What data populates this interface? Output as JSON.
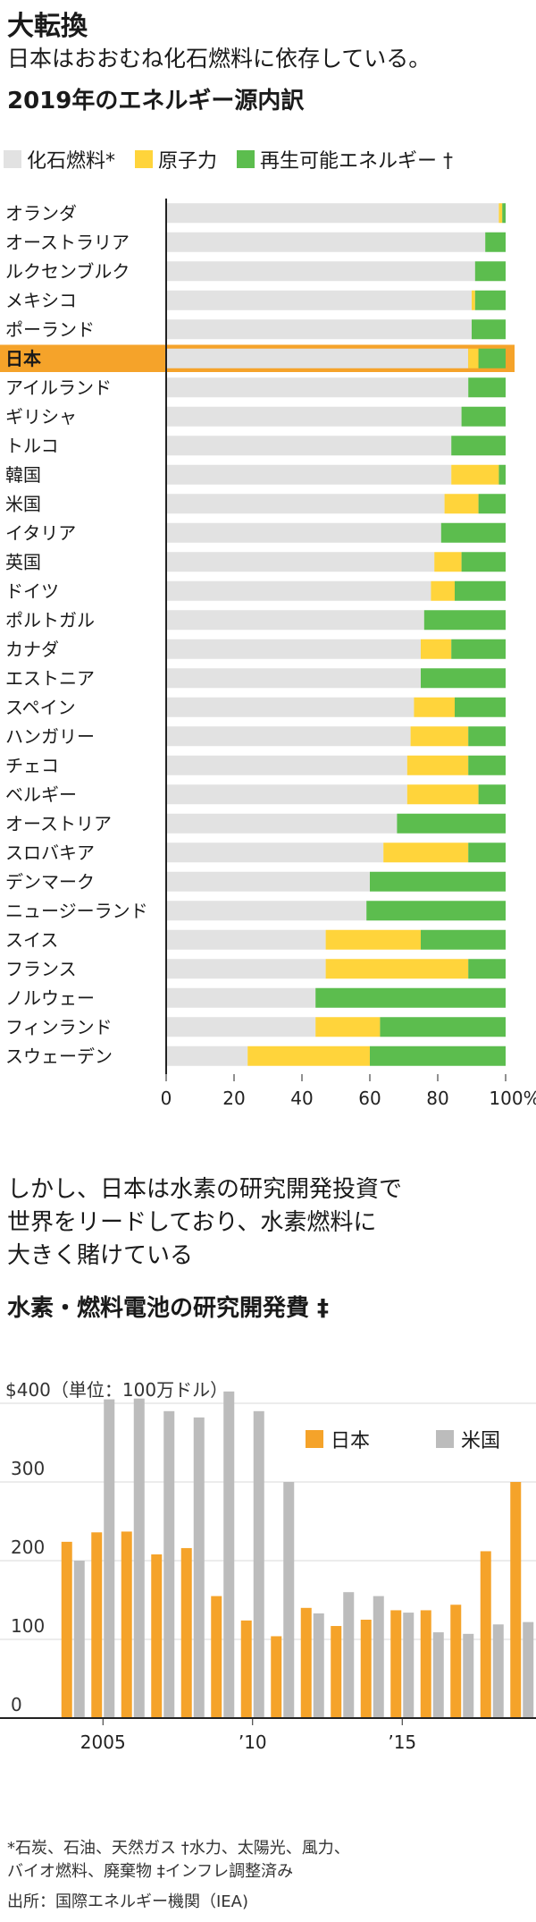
{
  "header": {
    "title": "大転換",
    "subtitle": "日本はおおむね化石燃料に依存している。"
  },
  "chart1_title": "2019年のエネルギー源内訳",
  "chart2_intro": [
    "しかし、日本は水素の研究開発投資で",
    "世界をリードしており、水素燃料に",
    "大きく賭けている"
  ],
  "chart2_title": "水素・燃料電池の研究開発費 ‡",
  "footnotes": {
    "line1": "*石炭、石油、天然ガス †水力、太陽光、風力、",
    "line2": "バイオ燃料、廃棄物 ‡インフレ調整済み",
    "source": "出所：国際エネルギー機関（IEA)"
  },
  "colors": {
    "fossil": "#e2e2e2",
    "nuclear": "#ffd43b",
    "renewable": "#5cbd4e",
    "japan": "#f5a32a",
    "us": "#bcbcbc",
    "highlight": "#f5a32a"
  },
  "chart_data": [
    {
      "type": "bar",
      "orientation": "horizontal",
      "stacked": true,
      "title": "2019年のエネルギー源内訳",
      "highlight": "日本",
      "series_names": [
        "化石燃料*",
        "原子力",
        "再生可能エネルギー †"
      ],
      "categories": [
        "オランダ",
        "オーストラリア",
        "ルクセンブルク",
        "メキシコ",
        "ポーランド",
        "日本",
        "アイルランド",
        "ギリシャ",
        "トルコ",
        "韓国",
        "米国",
        "イタリア",
        "英国",
        "ドイツ",
        "ポルトガル",
        "カナダ",
        "エストニア",
        "スペイン",
        "ハンガリー",
        "チェコ",
        "ベルギー",
        "オーストリア",
        "スロバキア",
        "デンマーク",
        "ニュージーランド",
        "スイス",
        "フランス",
        "ノルウェー",
        "フィンランド",
        "スウェーデン"
      ],
      "series": [
        {
          "name": "化石燃料*",
          "values": [
            98,
            94,
            91,
            90,
            90,
            89,
            89,
            87,
            84,
            84,
            82,
            81,
            79,
            78,
            76,
            75,
            75,
            73,
            72,
            71,
            71,
            68,
            64,
            60,
            59,
            47,
            47,
            44,
            44,
            24
          ]
        },
        {
          "name": "原子力",
          "values": [
            1,
            0,
            0,
            1,
            0,
            3,
            0,
            0,
            0,
            14,
            10,
            0,
            8,
            7,
            0,
            9,
            0,
            12,
            17,
            18,
            21,
            0,
            25,
            0,
            0,
            28,
            42,
            0,
            19,
            36
          ]
        },
        {
          "name": "再生可能エネルギー †",
          "values": [
            1,
            6,
            9,
            9,
            10,
            8,
            11,
            13,
            16,
            2,
            8,
            19,
            13,
            15,
            24,
            16,
            25,
            15,
            11,
            11,
            8,
            32,
            11,
            40,
            41,
            25,
            11,
            56,
            37,
            40
          ]
        }
      ],
      "xlim": [
        0,
        100
      ],
      "xticks": [
        "0",
        "20",
        "40",
        "60",
        "80",
        "100%"
      ]
    },
    {
      "type": "bar",
      "title": "水素・燃料電池の研究開発費 ‡",
      "unit_label": "$400（単位：100万ドル）",
      "x": [
        2004,
        2005,
        2006,
        2007,
        2008,
        2009,
        2010,
        2011,
        2012,
        2013,
        2014,
        2015,
        2016,
        2017,
        2018,
        2019
      ],
      "series": [
        {
          "name": "日本",
          "values": [
            224,
            236,
            237,
            208,
            216,
            155,
            124,
            104,
            140,
            117,
            125,
            137,
            137,
            144,
            212,
            300
          ]
        },
        {
          "name": "米国",
          "values": [
            200,
            405,
            406,
            390,
            382,
            415,
            390,
            300,
            133,
            160,
            155,
            134,
            109,
            107,
            119,
            122
          ]
        }
      ],
      "ylim": [
        0,
        400
      ],
      "yticks": [
        "0",
        "100",
        "200",
        "300",
        "$400"
      ],
      "xtick_labels": [
        "2005",
        "’10",
        "’15"
      ]
    }
  ]
}
